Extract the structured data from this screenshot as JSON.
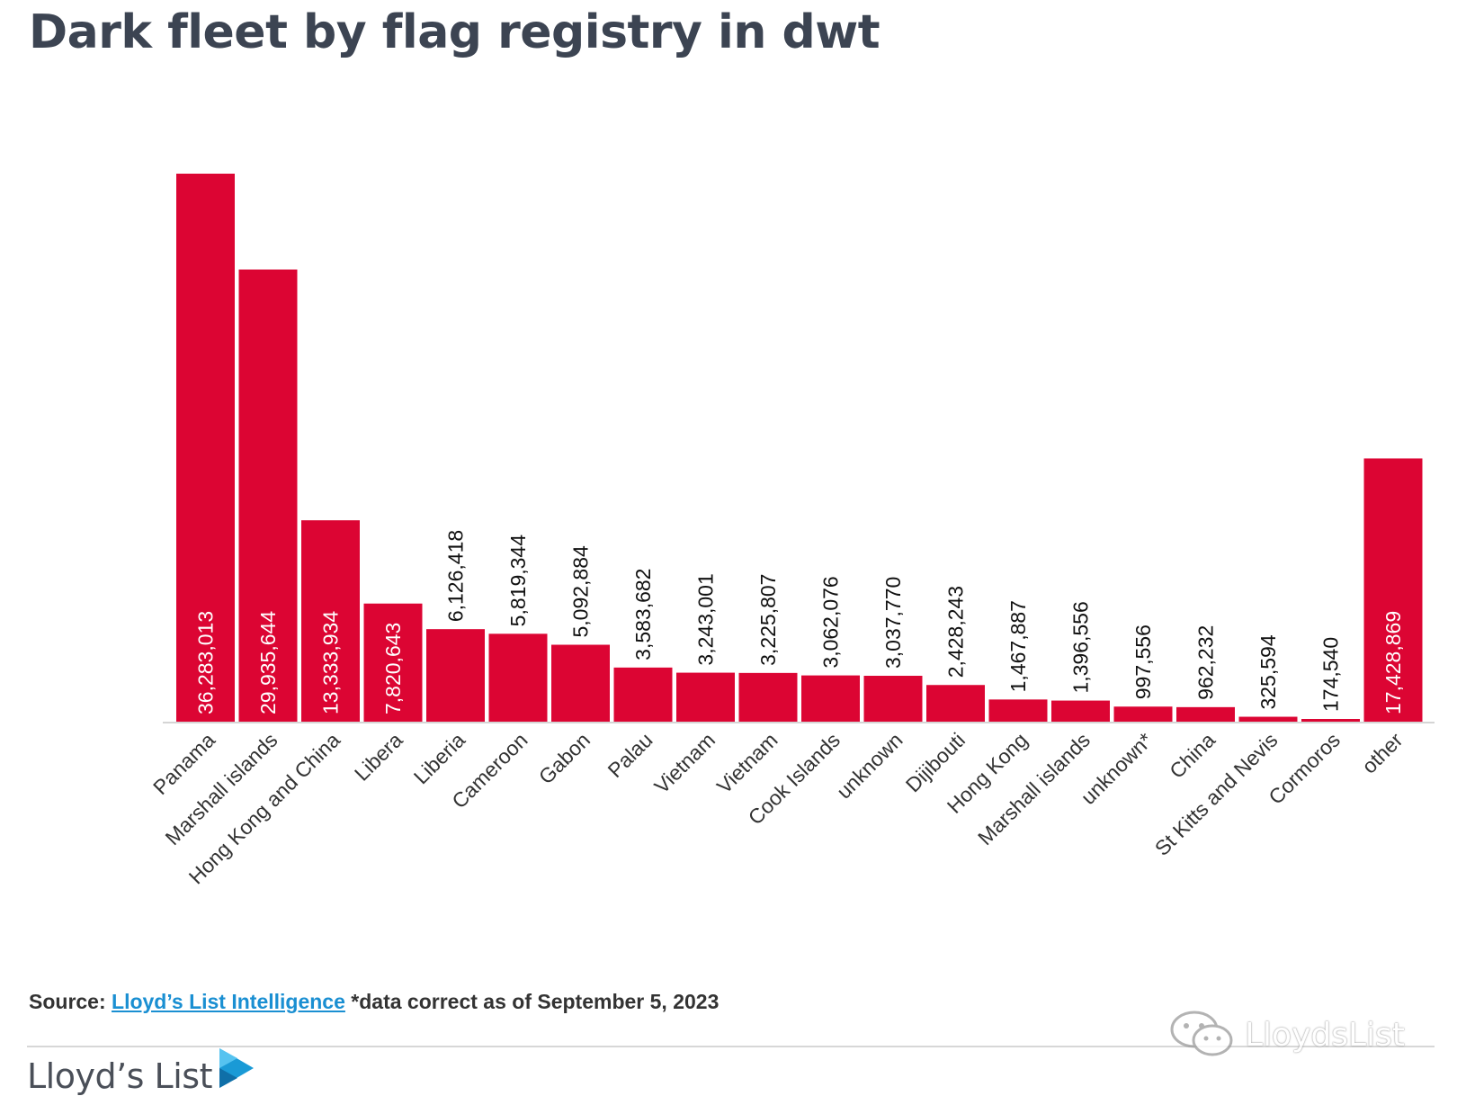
{
  "title": "Dark fleet by flag registry in dwt",
  "colors": {
    "bar": "#dc0533",
    "title": "#3c4452",
    "link": "#1a8fd2",
    "label_inside": "#ffffff",
    "label_outside": "#111111"
  },
  "chart_data": {
    "type": "bar",
    "title": "Dark fleet by flag registry in dwt",
    "xlabel": "",
    "ylabel": "",
    "ylim": [
      0,
      36283013
    ],
    "grid": false,
    "legend": "none",
    "categories": [
      "Panama",
      "Marshall islands",
      "Hong Kong and China",
      "Libera",
      "Liberia",
      "Cameroon",
      "Gabon",
      "Palau",
      "Vietnam",
      "Vietnam",
      "Cook Islands",
      "unknown",
      "Dijibouti",
      "Hong Kong",
      "Marshall islands",
      "unknown*",
      "China",
      "St Kitts and Nevis",
      "Cormoros",
      "other"
    ],
    "values": [
      36283013,
      29935644,
      13333934,
      7820643,
      6126418,
      5819344,
      5092884,
      3583682,
      3243001,
      3225807,
      3062076,
      3037770,
      2428243,
      1467887,
      1396556,
      997556,
      962232,
      325594,
      174540,
      17428869
    ],
    "value_labels": [
      "36,283,013",
      "29,935,644",
      "13,333,934",
      "7,820,643",
      "6,126,418",
      "5,819,344",
      "5,092,884",
      "3,583,682",
      "3,243,001",
      "3,225,807",
      "3,062,076",
      "3,037,770",
      "2,428,243",
      "1,467,887",
      "1,396,556",
      "997,556",
      "962,232",
      "325,594",
      "174,540",
      "17,428,869"
    ],
    "labels_inside_bar": [
      true,
      true,
      true,
      true,
      false,
      false,
      false,
      false,
      false,
      false,
      false,
      false,
      false,
      false,
      false,
      false,
      false,
      false,
      false,
      true
    ]
  },
  "source": {
    "prefix": "Source:",
    "link_text": "Lloyd’s List Intelligence",
    "note": "*data correct as of September 5, 2023"
  },
  "brand": {
    "name": "Lloyd’s List"
  },
  "watermark": {
    "text": "LloydsList",
    "icon": "wechat-icon"
  }
}
